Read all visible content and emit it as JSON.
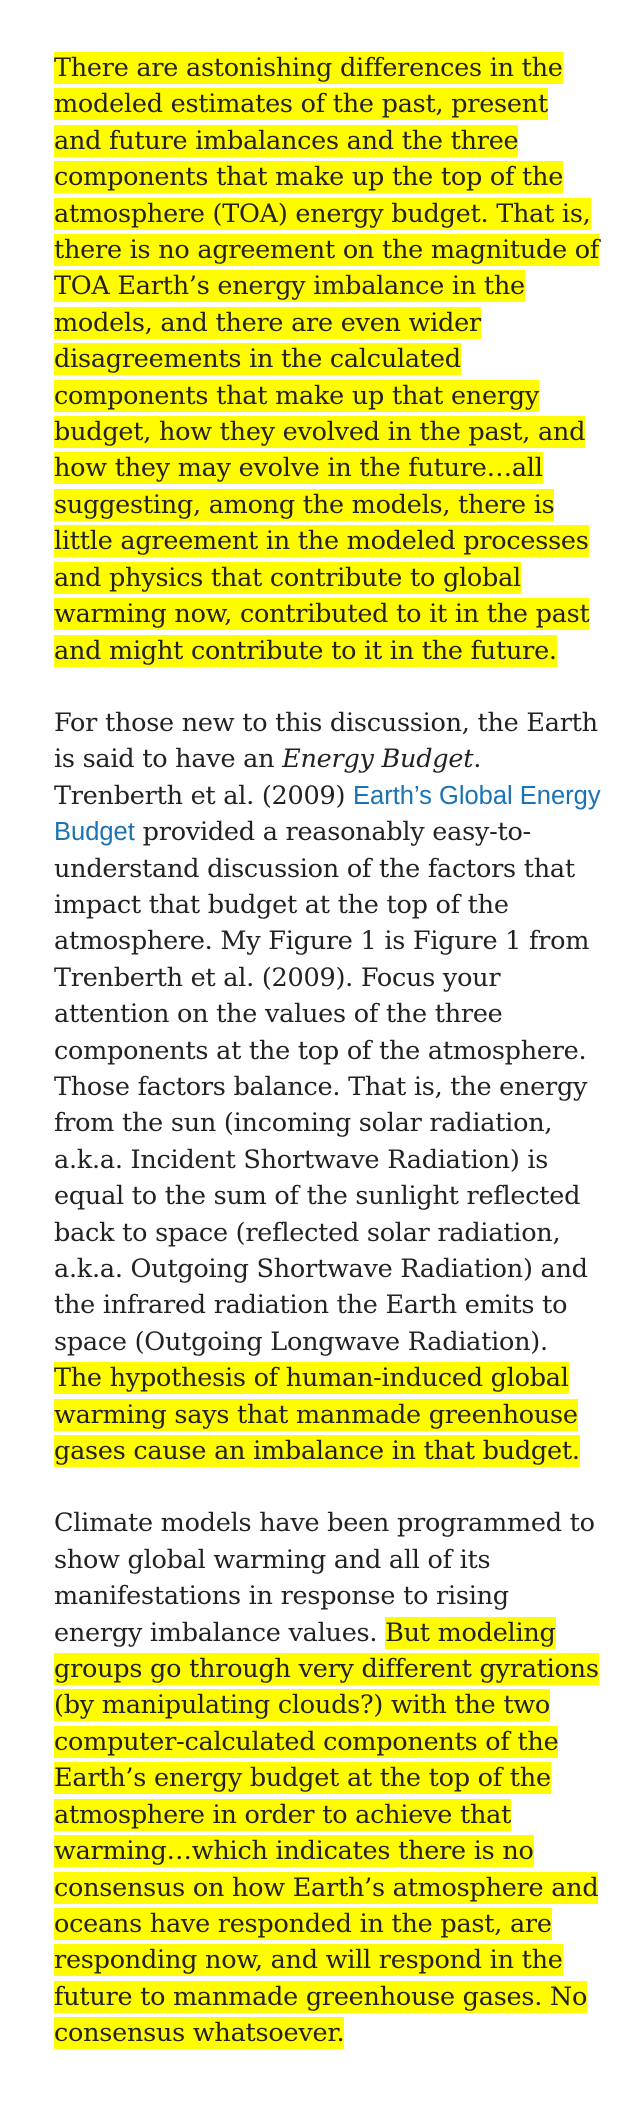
{
  "paragraph1": {
    "highlighted": "There are astonishing differences in the modeled estimates of the past, present and future imbalances and the three components that make up the top of the atmosphere (TOA) energy budget. That is, there is no agreement on the magnitude of TOA Earth’s energy imbalance in the models, and there are even wider disagreements in the calculated components that make up that energy budget, how they evolved in the past, and how they may evolve in the future…all suggesting, among the models, there is little agreement in the modeled processes and physics that contribute to global warming now, contributed to it in the past and might contribute to it in the future."
  },
  "paragraph2": {
    "text_a": "For those new to this discussion, the Earth is said to have an ",
    "italic": "Energy Budget",
    "text_b": ". Trenberth et al. (2009) ",
    "link_text": "Earth’s Global Energy Budget",
    "text_c": " provided a reasonably easy-to-understand discussion of the factors that impact that budget at the top of the atmosphere. My Figure 1 is Figure 1 from Trenberth et al. (2009). Focus your attention on the values of the three components at the top of the atmosphere. Those factors balance. That is, the energy from the sun (incoming solar radiation, a.k.a. Incident Shortwave Radiation) is equal to the sum of the sunlight reflected back to space (reflected solar radiation, a.k.a. Outgoing Shortwave Radiation) and the infrared radiation the Earth emits to space (Outgoing Longwave Radiation). ",
    "highlighted": "The hypothesis of human-induced global warming says that manmade greenhouse gases cause an imbalance in that budget."
  },
  "paragraph3": {
    "text_a": "Climate models have been programmed to show global warming and all of its manifestations in response to rising energy imbalance values. ",
    "highlighted": "But modeling groups go through very different gyrations (by manipulating clouds?) with the two computer-calculated components of the Earth’s energy budget at the top of the atmosphere in order to achieve that warming…which indicates there is no consensus on how Earth’s atmosphere and oceans have responded in the past, are responding now, and will respond in the future to manmade greenhouse gases. No consensus whatsoever."
  },
  "colors": {
    "highlight": "#fffc00",
    "text": "#222222",
    "link": "#1a73b5"
  }
}
